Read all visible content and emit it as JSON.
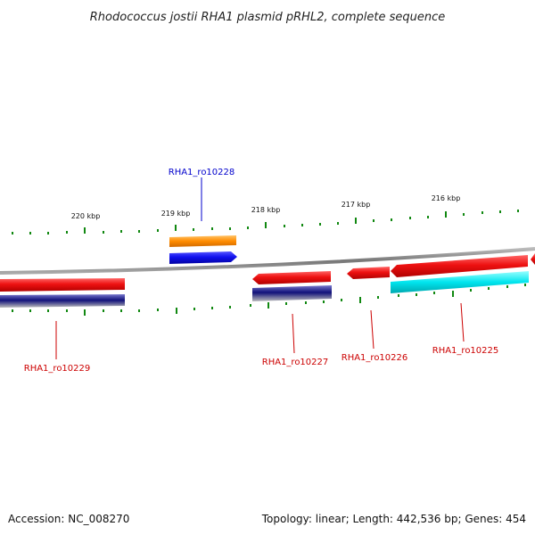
{
  "title": "Rhodococcus jostii RHA1 plasmid pRHL2, complete sequence",
  "scale": {
    "tick_labels": [
      "220 kbp",
      "219 kbp",
      "218 kbp",
      "217 kbp",
      "216 kbp"
    ]
  },
  "genes": [
    {
      "label": "RHA1_ro10228",
      "strand": "forward",
      "label_color": "#0000cc"
    },
    {
      "label": "RHA1_ro10229",
      "strand": "reverse",
      "label_color": "#cc0000"
    },
    {
      "label": "RHA1_ro10227",
      "strand": "reverse",
      "label_color": "#cc0000"
    },
    {
      "label": "RHA1_ro10226",
      "strand": "reverse",
      "label_color": "#cc0000"
    },
    {
      "label": "RHA1_ro10225",
      "strand": "reverse",
      "label_color": "#cc0000"
    }
  ],
  "colors": {
    "gene_red": "#ee1111",
    "gene_blue": "#1111ee",
    "orange": "#ff8c00",
    "navy": "#11117a",
    "cyan": "#00e5ee",
    "backbone": "#888888",
    "tick_green": "#118811"
  },
  "footer": {
    "accession": "Accession: NC_008270",
    "summary": "Topology: linear; Length: 442,536 bp; Genes: 454"
  }
}
